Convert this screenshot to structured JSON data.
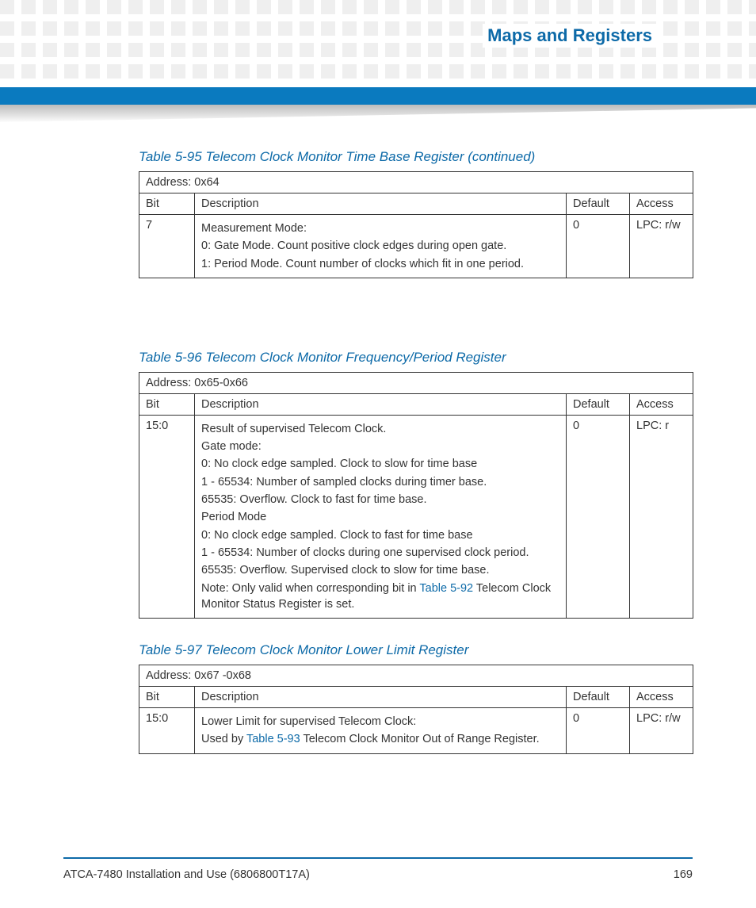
{
  "header": {
    "chapter_title": "Maps and Registers",
    "bar_color": "#0a7abf",
    "title_color": "#0d6aa8"
  },
  "tables": {
    "t595": {
      "caption": "Table 5-95 Telecom Clock Monitor Time Base Register (continued)",
      "address": "Address: 0x64",
      "columns": {
        "bit": "Bit",
        "desc": "Description",
        "def": "Default",
        "acc": "Access"
      },
      "rows": [
        {
          "bit": "7",
          "desc_lines": [
            "Measurement Mode:",
            "0: Gate Mode. Count positive clock edges during open gate.",
            "1: Period Mode. Count number of clocks which fit in one period."
          ],
          "def": "0",
          "acc": "LPC: r/w"
        }
      ]
    },
    "t596": {
      "caption": "Table 5-96 Telecom Clock Monitor Frequency/Period Register",
      "address": "Address: 0x65-0x66",
      "columns": {
        "bit": "Bit",
        "desc": "Description",
        "def": "Default",
        "acc": "Access"
      },
      "rows": [
        {
          "bit": "15:0",
          "desc_lines": [
            "Result of supervised Telecom Clock.",
            "Gate mode:",
            "0: No clock edge sampled. Clock to slow for time base",
            "1 - 65534: Number of sampled clocks during timer base.",
            "65535: Overflow. Clock to fast for time base.",
            "Period Mode",
            "0: No clock edge sampled. Clock to fast for time base",
            "1 - 65534: Number of clocks during one supervised clock period.",
            "65535: Overflow. Supervised clock to slow for time base."
          ],
          "note_prefix": "Note: Only valid when corresponding bit in ",
          "note_link": "Table 5-92",
          "note_suffix": " Telecom Clock Monitor Status Register is set.",
          "def": "0",
          "acc": "LPC: r"
        }
      ]
    },
    "t597": {
      "caption": "Table 5-97 Telecom Clock Monitor Lower Limit Register",
      "address": "Address: 0x67 -0x68",
      "columns": {
        "bit": "Bit",
        "desc": "Description",
        "def": "Default",
        "acc": "Access"
      },
      "rows": [
        {
          "bit": "15:0",
          "line1": "Lower Limit for supervised Telecom Clock:",
          "line2_prefix": "Used by ",
          "line2_link": "Table 5-93",
          "line2_suffix": " Telecom Clock Monitor Out of Range Register.",
          "def": "0",
          "acc": "LPC: r/w"
        }
      ]
    }
  },
  "footer": {
    "doc": "ATCA-7480 Installation and Use (6806800T17A)",
    "page": "169",
    "rule_color": "#0d6aa8"
  }
}
